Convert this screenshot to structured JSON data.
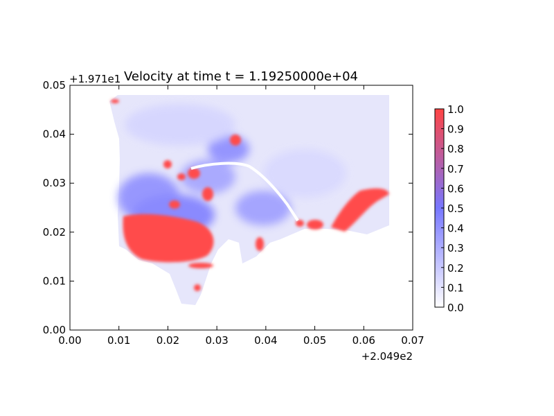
{
  "chart_data": {
    "type": "heatmap",
    "title": "Velocity at time t = 1.19250000e+04",
    "xlabel": "",
    "ylabel": "",
    "x_offset_label": "+2.049e2",
    "y_offset_label": "+1.971e1",
    "xlim": [
      0.0,
      0.07
    ],
    "ylim": [
      0.0,
      0.05
    ],
    "x_ticks": [
      "0.00",
      "0.01",
      "0.02",
      "0.03",
      "0.04",
      "0.05",
      "0.06",
      "0.07"
    ],
    "y_ticks": [
      "0.00",
      "0.01",
      "0.02",
      "0.03",
      "0.04",
      "0.05"
    ],
    "colorbar": {
      "min": 0.0,
      "max": 1.0,
      "ticks": [
        "0.0",
        "0.1",
        "0.2",
        "0.3",
        "0.4",
        "0.5",
        "0.6",
        "0.7",
        "0.8",
        "0.9",
        "1.0"
      ],
      "colors": [
        "#ffffff",
        "#7777ff",
        "#ff4444"
      ]
    },
    "grid": false,
    "domain_extent": {
      "x": [
        0.008,
        0.065
      ],
      "y": [
        0.005,
        0.048
      ]
    }
  }
}
